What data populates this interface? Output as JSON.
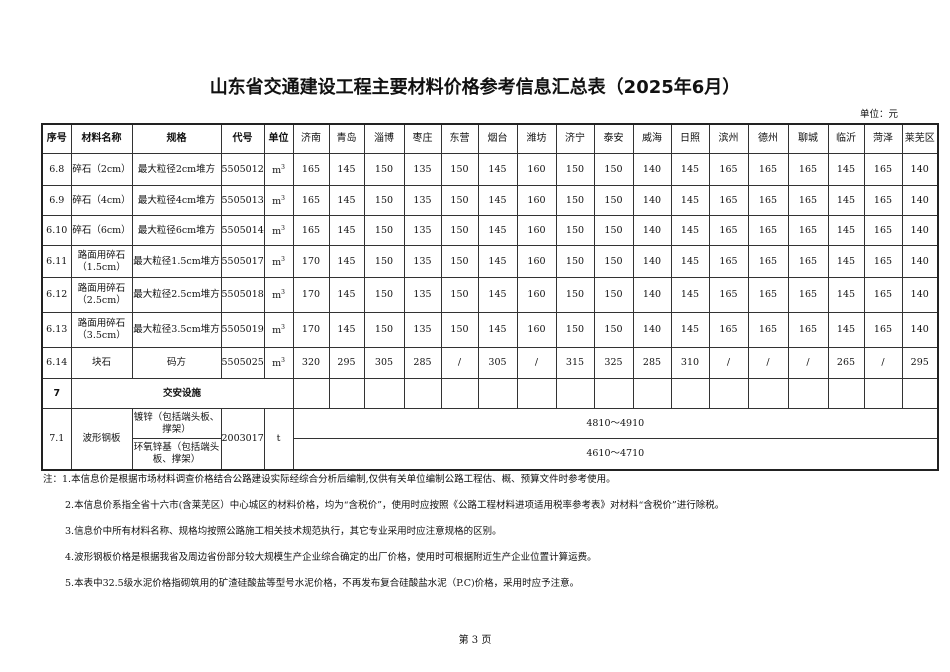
{
  "title": "山东省交通建设工程主要材料价格参考信息汇总表（2025年6月）",
  "unit_label": "单位：元",
  "headers": [
    "序号",
    "材料名称",
    "规格",
    "代号",
    "单位"
  ],
  "cities": [
    "济南",
    "青岛",
    "淄博",
    "枣庄",
    "东营",
    "烟台",
    "潍坊",
    "济宁",
    "泰安",
    "威海",
    "日照",
    "滨州",
    "德州",
    "聊城",
    "临沂",
    "菏泽",
    "莱芜区"
  ],
  "rows": [
    {
      "no": "6.8",
      "name": "碎石（2cm）",
      "spec": "最大粒径2cm堆方",
      "code": "5505012",
      "unit": "m",
      "unit_sup": "3",
      "prices": [
        "165",
        "145",
        "150",
        "135",
        "150",
        "145",
        "160",
        "150",
        "150",
        "140",
        "145",
        "165",
        "165",
        "165",
        "145",
        "165",
        "140"
      ]
    },
    {
      "no": "6.9",
      "name": "碎石（4cm）",
      "spec": "最大粒径4cm堆方",
      "code": "5505013",
      "unit": "m",
      "unit_sup": "3",
      "prices": [
        "165",
        "145",
        "150",
        "135",
        "150",
        "145",
        "160",
        "150",
        "150",
        "140",
        "145",
        "165",
        "165",
        "165",
        "145",
        "165",
        "140"
      ]
    },
    {
      "no": "6.10",
      "name": "碎石（6cm）",
      "spec": "最大粒径6cm堆方",
      "code": "5505014",
      "unit": "m",
      "unit_sup": "3",
      "prices": [
        "165",
        "145",
        "150",
        "135",
        "150",
        "145",
        "160",
        "150",
        "150",
        "140",
        "145",
        "165",
        "165",
        "165",
        "145",
        "165",
        "140"
      ]
    },
    {
      "no": "6.11",
      "name": "路面用碎石（1.5cm）",
      "spec": "最大粒径1.5cm堆方",
      "code": "5505017",
      "unit": "m",
      "unit_sup": "3",
      "prices": [
        "170",
        "145",
        "150",
        "135",
        "150",
        "145",
        "160",
        "150",
        "150",
        "140",
        "145",
        "165",
        "165",
        "165",
        "145",
        "165",
        "140"
      ]
    },
    {
      "no": "6.12",
      "name": "路面用碎石（2.5cm）",
      "spec": "最大粒径2.5cm堆方",
      "code": "5505018",
      "unit": "m",
      "unit_sup": "3",
      "prices": [
        "170",
        "145",
        "150",
        "135",
        "150",
        "145",
        "160",
        "150",
        "150",
        "140",
        "145",
        "165",
        "165",
        "165",
        "145",
        "165",
        "140"
      ]
    },
    {
      "no": "6.13",
      "name": "路面用碎石（3.5cm）",
      "spec": "最大粒径3.5cm堆方",
      "code": "5505019",
      "unit": "m",
      "unit_sup": "3",
      "prices": [
        "170",
        "145",
        "150",
        "135",
        "150",
        "145",
        "160",
        "150",
        "150",
        "140",
        "145",
        "165",
        "165",
        "165",
        "145",
        "165",
        "140"
      ]
    },
    {
      "no": "6.14",
      "name": "块石",
      "spec": "码方",
      "code": "5505025",
      "unit": "m",
      "unit_sup": "3",
      "prices": [
        "320",
        "295",
        "305",
        "285",
        "/",
        "305",
        "/",
        "315",
        "325",
        "285",
        "310",
        "/",
        "/",
        "/",
        "265",
        "/",
        "295"
      ]
    }
  ],
  "category": {
    "no": "7",
    "name": "交安设施"
  },
  "steel": {
    "no": "7.1",
    "name": "波形钢板",
    "code": "2003017",
    "unit": "t",
    "specs": [
      {
        "spec": "镀锌（包括端头板、撑架）",
        "price": "4810～4910"
      },
      {
        "spec": "环氧锌基（包括端头板、撑架）",
        "price": "4610～4710"
      }
    ]
  },
  "notes": [
    "注：1.本信息价是根据市场材料调查价格结合公路建设实际经综合分析后编制,仅供有关单位编制公路工程估、概、预算文件时参考使用。",
    "2.本信息价系指全省十六市(含莱芜区）中心城区的材料价格，均为“含税价”，使用时应按照《公路工程材料进项适用税率参考表》对材料“含税价”进行除税。",
    "3.信息价中所有材料名称、规格均按照公路施工相关技术规范执行，其它专业采用时应注意规格的区别。",
    "4.波形钢板价格是根据我省及周边省份部分较大规模生产企业综合确定的出厂价格，使用时可根据附近生产企业位置计算运费。",
    "5.本表中32.5级水泥价格指砌筑用的矿渣硅酸盐等型号水泥价格，不再发布复合硅酸盐水泥（P.C)价格，采用时应予注意。"
  ],
  "footer": "第 3 页"
}
